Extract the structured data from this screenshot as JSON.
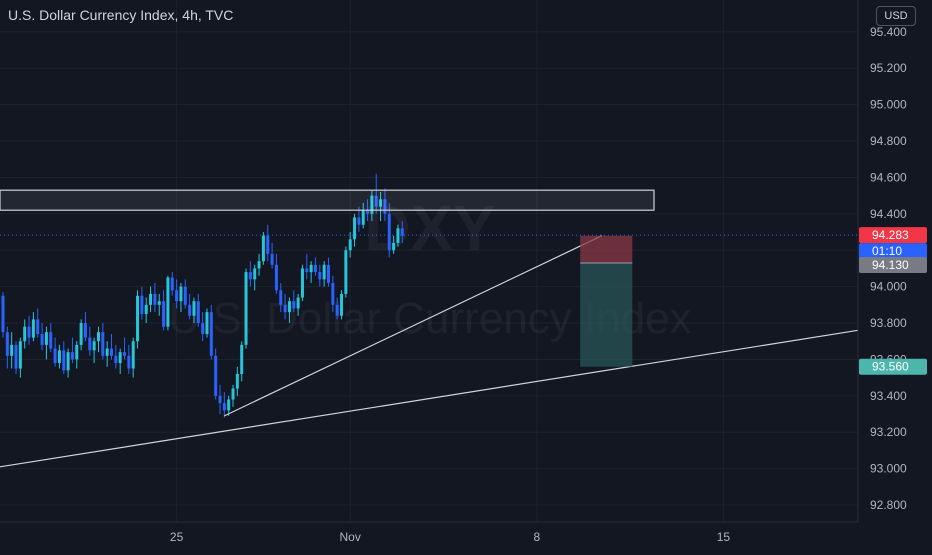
{
  "header": {
    "title": "U.S. Dollar Currency Index, 4h, TVC",
    "currency": "USD"
  },
  "watermark": {
    "symbol": "DXY",
    "name": "U.S. Dollar Currency Index"
  },
  "colors": {
    "background": "#131722",
    "bull": "#26c6da",
    "bear": "#2962ff",
    "current_price": "#f23645",
    "countdown": "#2962ff",
    "entry_price": "#787b86",
    "target_price": "#4db6ac",
    "stop_zone": "#8a3a44",
    "profit_zone": "#2a5a5b",
    "zone_box": "#cfd2da"
  },
  "chart_data": {
    "type": "candlestick",
    "title": "U.S. Dollar Currency Index, 4h, TVC",
    "ylim": [
      92.61,
      95.52
    ],
    "yticks": [
      "95.400",
      "95.200",
      "95.000",
      "94.800",
      "94.600",
      "94.400",
      "94.200",
      "94.000",
      "93.800",
      "93.600",
      "93.400",
      "93.200",
      "93.000",
      "92.800"
    ],
    "x_date_labels": [
      {
        "label": "25",
        "index": 40
      },
      {
        "label": "Nov",
        "index": 80
      },
      {
        "label": "8",
        "index": 123
      },
      {
        "label": "15",
        "index": 166
      }
    ],
    "price_labels": {
      "current": "94.283",
      "countdown": "01:10",
      "entry": "94.130",
      "target": "93.560"
    },
    "ohlc": [
      [
        93.95,
        93.97,
        93.72,
        93.75
      ],
      [
        93.75,
        93.78,
        93.55,
        93.62
      ],
      [
        93.62,
        93.75,
        93.55,
        93.68
      ],
      [
        93.68,
        93.7,
        93.52,
        93.55
      ],
      [
        93.55,
        93.72,
        93.5,
        93.7
      ],
      [
        93.7,
        93.82,
        93.66,
        93.78
      ],
      [
        93.78,
        93.84,
        93.68,
        93.72
      ],
      [
        93.72,
        93.86,
        93.7,
        93.82
      ],
      [
        93.82,
        93.88,
        93.72,
        93.74
      ],
      [
        93.74,
        93.8,
        93.65,
        93.68
      ],
      [
        93.68,
        93.78,
        93.6,
        93.75
      ],
      [
        93.75,
        93.8,
        93.64,
        93.66
      ],
      [
        93.66,
        93.72,
        93.56,
        93.58
      ],
      [
        93.58,
        93.68,
        93.55,
        93.65
      ],
      [
        93.65,
        93.7,
        93.52,
        93.54
      ],
      [
        93.54,
        93.66,
        93.5,
        93.64
      ],
      [
        93.64,
        93.72,
        93.58,
        93.6
      ],
      [
        93.6,
        93.7,
        93.55,
        93.68
      ],
      [
        93.68,
        93.82,
        93.65,
        93.8
      ],
      [
        93.8,
        93.86,
        93.7,
        93.72
      ],
      [
        93.72,
        93.78,
        93.62,
        93.65
      ],
      [
        93.65,
        93.72,
        93.58,
        93.7
      ],
      [
        93.7,
        93.78,
        93.64,
        93.75
      ],
      [
        93.75,
        93.8,
        93.6,
        93.62
      ],
      [
        93.62,
        93.7,
        93.56,
        93.66
      ],
      [
        93.66,
        93.74,
        93.6,
        93.62
      ],
      [
        93.62,
        93.68,
        93.55,
        93.58
      ],
      [
        93.58,
        93.66,
        93.52,
        93.64
      ],
      [
        93.64,
        93.72,
        93.6,
        93.62
      ],
      [
        93.62,
        93.68,
        93.52,
        93.55
      ],
      [
        93.55,
        93.72,
        93.5,
        93.7
      ],
      [
        93.7,
        93.98,
        93.66,
        93.95
      ],
      [
        93.95,
        94.0,
        93.82,
        93.85
      ],
      [
        93.85,
        93.94,
        93.8,
        93.9
      ],
      [
        93.9,
        94.0,
        93.86,
        93.96
      ],
      [
        93.96,
        94.02,
        93.86,
        93.9
      ],
      [
        93.9,
        93.96,
        93.84,
        93.92
      ],
      [
        93.92,
        93.98,
        93.76,
        93.78
      ],
      [
        93.78,
        94.06,
        93.76,
        94.05
      ],
      [
        94.05,
        94.08,
        93.95,
        93.98
      ],
      [
        93.98,
        94.04,
        93.88,
        93.92
      ],
      [
        93.92,
        94.02,
        93.86,
        94.0
      ],
      [
        94.0,
        94.04,
        93.88,
        93.9
      ],
      [
        93.9,
        93.96,
        93.82,
        93.84
      ],
      [
        93.84,
        93.94,
        93.8,
        93.92
      ],
      [
        93.92,
        93.96,
        93.78,
        93.8
      ],
      [
        93.8,
        93.86,
        93.7,
        93.74
      ],
      [
        93.74,
        93.88,
        93.72,
        93.86
      ],
      [
        93.86,
        93.9,
        93.6,
        93.62
      ],
      [
        93.62,
        93.66,
        93.38,
        93.4
      ],
      [
        93.4,
        93.46,
        93.3,
        93.36
      ],
      [
        93.36,
        93.42,
        93.28,
        93.32
      ],
      [
        93.32,
        93.4,
        93.29,
        93.38
      ],
      [
        93.38,
        93.46,
        93.34,
        93.44
      ],
      [
        93.44,
        93.56,
        93.4,
        93.52
      ],
      [
        93.52,
        93.7,
        93.48,
        93.68
      ],
      [
        93.68,
        94.1,
        93.66,
        94.08
      ],
      [
        94.08,
        94.14,
        94.0,
        94.04
      ],
      [
        94.04,
        94.12,
        93.98,
        94.1
      ],
      [
        94.1,
        94.18,
        94.06,
        94.14
      ],
      [
        94.14,
        94.3,
        94.12,
        94.28
      ],
      [
        94.28,
        94.34,
        94.14,
        94.18
      ],
      [
        94.18,
        94.24,
        94.1,
        94.12
      ],
      [
        94.12,
        94.18,
        93.96,
        93.98
      ],
      [
        93.98,
        94.02,
        93.86,
        93.9
      ],
      [
        93.9,
        93.96,
        93.82,
        93.86
      ],
      [
        93.86,
        93.94,
        93.8,
        93.92
      ],
      [
        93.92,
        93.98,
        93.86,
        93.88
      ],
      [
        93.88,
        93.96,
        93.84,
        93.94
      ],
      [
        93.94,
        94.12,
        93.92,
        94.1
      ],
      [
        94.1,
        94.18,
        94.04,
        94.08
      ],
      [
        94.08,
        94.14,
        94.02,
        94.12
      ],
      [
        94.12,
        94.16,
        94.06,
        94.08
      ],
      [
        94.08,
        94.12,
        94.0,
        94.04
      ],
      [
        94.04,
        94.14,
        94.0,
        94.12
      ],
      [
        94.12,
        94.16,
        94.0,
        94.02
      ],
      [
        94.02,
        94.06,
        93.86,
        93.9
      ],
      [
        93.9,
        93.94,
        93.82,
        93.84
      ],
      [
        93.84,
        93.98,
        93.82,
        93.96
      ],
      [
        93.96,
        94.22,
        93.94,
        94.2
      ],
      [
        94.2,
        94.3,
        94.16,
        94.26
      ],
      [
        94.26,
        94.4,
        94.22,
        94.38
      ],
      [
        94.38,
        94.44,
        94.3,
        94.34
      ],
      [
        94.34,
        94.46,
        94.32,
        94.42
      ],
      [
        94.42,
        94.48,
        94.36,
        94.4
      ],
      [
        94.4,
        94.53,
        94.36,
        94.5
      ],
      [
        94.5,
        94.62,
        94.4,
        94.44
      ],
      [
        94.44,
        94.52,
        94.36,
        94.48
      ],
      [
        94.48,
        94.54,
        94.36,
        94.4
      ],
      [
        94.4,
        94.46,
        94.16,
        94.2
      ],
      [
        94.2,
        94.28,
        94.18,
        94.24
      ],
      [
        94.24,
        94.34,
        94.22,
        94.32
      ],
      [
        94.32,
        94.36,
        94.24,
        94.28
      ]
    ]
  }
}
